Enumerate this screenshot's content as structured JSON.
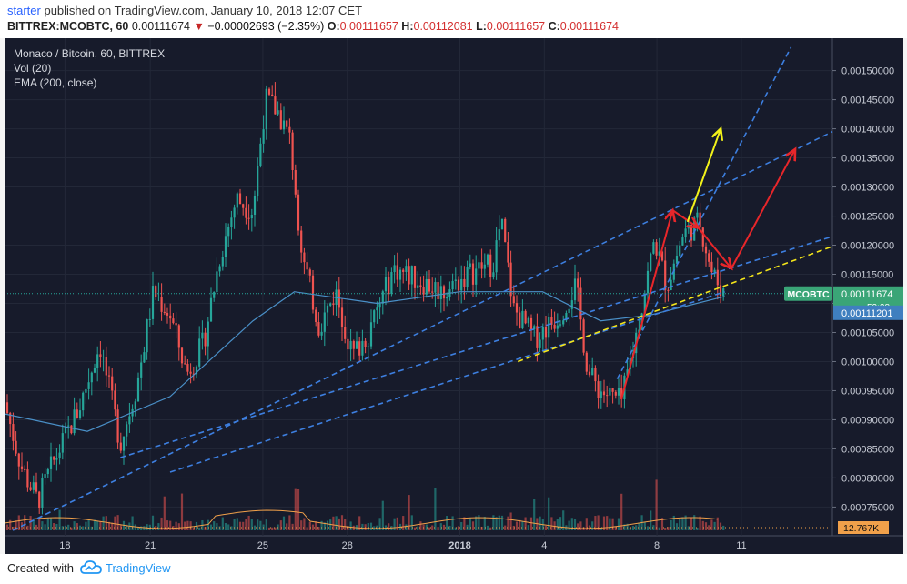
{
  "header": {
    "user": "starter",
    "published_text": "published on TradingView.com, January 10, 2018 12:07 CET",
    "symbol": "BITTREX:MCOBTC, 60",
    "last": "0.00111674",
    "change": "−0.00002693 (−2.35%)",
    "open_label": "O:",
    "open": "0.00111657",
    "high_label": "H:",
    "high": "0.00112081",
    "low_label": "L:",
    "low": "0.00111657",
    "close_label": "C:",
    "close": "0.00111674"
  },
  "legend": {
    "title": "Monaco / Bitcoin, 60, BITTREX",
    "volume": "Vol (20)",
    "ema": "EMA (200, close)"
  },
  "footer": {
    "created_with": "Created with",
    "brand": "TradingView"
  },
  "colors": {
    "background": "#171b2b",
    "up": "#26a69a",
    "down": "#ef5350",
    "ema": "#4a90c8",
    "trend_blue": "#3d7fe0",
    "trend_yellow": "#f5e61a",
    "arrow_red": "#e8262a",
    "arrow_yellow": "#f2f21a",
    "vol_ma": "#f0a04a",
    "mco_badge": "#3aa577",
    "ema_badge": "#3f7fbf"
  },
  "chart_data": {
    "type": "candlestick",
    "y_axis_ticks": [
      "0.00150000",
      "0.00145000",
      "0.00140000",
      "0.00135000",
      "0.00130000",
      "0.00125000",
      "0.00120000",
      "0.00115000",
      "0.00110000",
      "0.00105000",
      "0.00100000",
      "0.00095000",
      "0.00090000",
      "0.00085000",
      "0.00080000",
      "0.00075000"
    ],
    "ylim": [
      0.00071,
      0.00154
    ],
    "x_axis_ticks": [
      "18",
      "21",
      "25",
      "28",
      "2018",
      "4",
      "8",
      "11"
    ],
    "price_path": [
      {
        "x": 0,
        "y": 0.00093
      },
      {
        "x": 0.02,
        "y": 0.00082
      },
      {
        "x": 0.04,
        "y": 0.00076
      },
      {
        "x": 0.06,
        "y": 0.00083
      },
      {
        "x": 0.09,
        "y": 0.00092
      },
      {
        "x": 0.115,
        "y": 0.00103
      },
      {
        "x": 0.14,
        "y": 0.00086
      },
      {
        "x": 0.16,
        "y": 0.00096
      },
      {
        "x": 0.18,
        "y": 0.00112
      },
      {
        "x": 0.2,
        "y": 0.00108
      },
      {
        "x": 0.22,
        "y": 0.00098
      },
      {
        "x": 0.24,
        "y": 0.00103
      },
      {
        "x": 0.26,
        "y": 0.00118
      },
      {
        "x": 0.28,
        "y": 0.00128
      },
      {
        "x": 0.3,
        "y": 0.00126
      },
      {
        "x": 0.315,
        "y": 0.00145
      },
      {
        "x": 0.33,
        "y": 0.00143
      },
      {
        "x": 0.345,
        "y": 0.00138
      },
      {
        "x": 0.36,
        "y": 0.00118
      },
      {
        "x": 0.38,
        "y": 0.00106
      },
      {
        "x": 0.4,
        "y": 0.00112
      },
      {
        "x": 0.42,
        "y": 0.00101
      },
      {
        "x": 0.44,
        "y": 0.00105
      },
      {
        "x": 0.47,
        "y": 0.00116
      },
      {
        "x": 0.5,
        "y": 0.00114
      },
      {
        "x": 0.53,
        "y": 0.00112
      },
      {
        "x": 0.56,
        "y": 0.00115
      },
      {
        "x": 0.59,
        "y": 0.00117
      },
      {
        "x": 0.6,
        "y": 0.00124
      },
      {
        "x": 0.615,
        "y": 0.00109
      },
      {
        "x": 0.64,
        "y": 0.00104
      },
      {
        "x": 0.67,
        "y": 0.00108
      },
      {
        "x": 0.69,
        "y": 0.00113
      },
      {
        "x": 0.705,
        "y": 0.00098
      },
      {
        "x": 0.72,
        "y": 0.00095
      },
      {
        "x": 0.745,
        "y": 0.00093
      },
      {
        "x": 0.765,
        "y": 0.00106
      },
      {
        "x": 0.785,
        "y": 0.00121
      },
      {
        "x": 0.8,
        "y": 0.00113
      },
      {
        "x": 0.82,
        "y": 0.00122
      },
      {
        "x": 0.84,
        "y": 0.00124
      },
      {
        "x": 0.855,
        "y": 0.00115
      },
      {
        "x": 0.87,
        "y": 0.00111674
      }
    ],
    "ema_path": [
      {
        "x": 0,
        "y": 0.00091
      },
      {
        "x": 0.1,
        "y": 0.00088
      },
      {
        "x": 0.2,
        "y": 0.00094
      },
      {
        "x": 0.3,
        "y": 0.00107
      },
      {
        "x": 0.35,
        "y": 0.00112
      },
      {
        "x": 0.45,
        "y": 0.0011
      },
      {
        "x": 0.55,
        "y": 0.00112
      },
      {
        "x": 0.65,
        "y": 0.00112
      },
      {
        "x": 0.72,
        "y": 0.00107
      },
      {
        "x": 0.78,
        "y": 0.00108
      },
      {
        "x": 0.87,
        "y": 0.00111201
      }
    ],
    "last_price_label": "MCOBTC",
    "last_price_value": "0.00111674",
    "countdown": "52:28",
    "ema_value": "0.00111201",
    "volume_ma_value": "12.767K"
  }
}
